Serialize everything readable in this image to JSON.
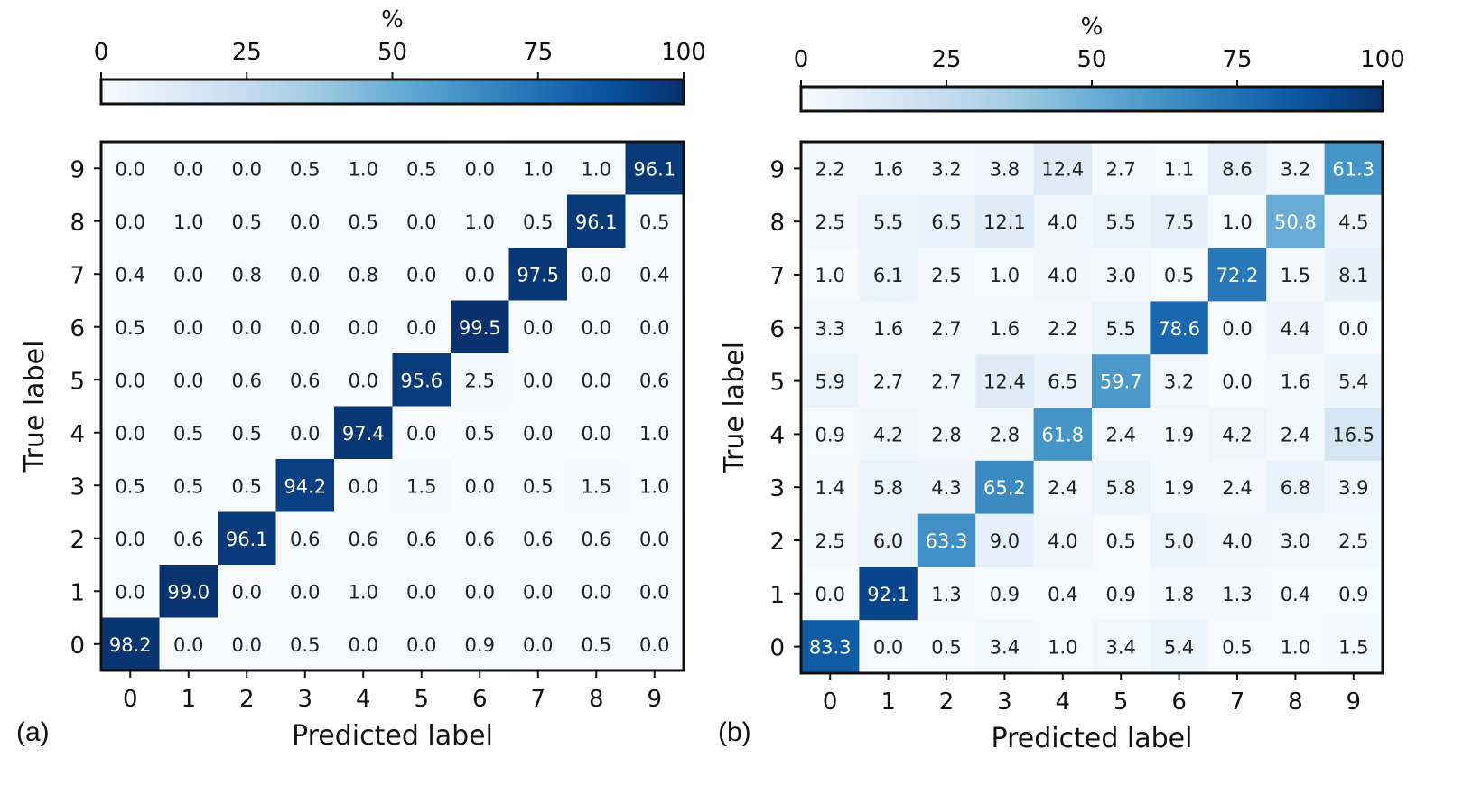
{
  "chart_data": [
    {
      "type": "heatmap",
      "panel_label": "(a)",
      "xlabel": "Predicted label",
      "ylabel": "True label",
      "x_categories": [
        "0",
        "1",
        "2",
        "3",
        "4",
        "5",
        "6",
        "7",
        "8",
        "9"
      ],
      "y_categories": [
        "0",
        "1",
        "2",
        "3",
        "4",
        "5",
        "6",
        "7",
        "8",
        "9"
      ],
      "colorbar": {
        "title": "%",
        "range": [
          0,
          100
        ],
        "ticks": [
          "0",
          "25",
          "50",
          "75",
          "100"
        ],
        "orientation": "horizontal",
        "position": "top"
      },
      "rows_top_to_bottom": [
        "9",
        "8",
        "7",
        "6",
        "5",
        "4",
        "3",
        "2",
        "1",
        "0"
      ],
      "values": [
        [
          "0.0",
          "0.0",
          "0.0",
          "0.5",
          "1.0",
          "0.5",
          "0.0",
          "1.0",
          "1.0",
          "96.1"
        ],
        [
          "0.0",
          "1.0",
          "0.5",
          "0.0",
          "0.5",
          "0.0",
          "1.0",
          "0.5",
          "96.1",
          "0.5"
        ],
        [
          "0.4",
          "0.0",
          "0.8",
          "0.0",
          "0.8",
          "0.0",
          "0.0",
          "97.5",
          "0.0",
          "0.4"
        ],
        [
          "0.5",
          "0.0",
          "0.0",
          "0.0",
          "0.0",
          "0.0",
          "99.5",
          "0.0",
          "0.0",
          "0.0"
        ],
        [
          "0.0",
          "0.0",
          "0.6",
          "0.6",
          "0.0",
          "95.6",
          "2.5",
          "0.0",
          "0.0",
          "0.6"
        ],
        [
          "0.0",
          "0.5",
          "0.5",
          "0.0",
          "97.4",
          "0.0",
          "0.5",
          "0.0",
          "0.0",
          "1.0"
        ],
        [
          "0.5",
          "0.5",
          "0.5",
          "94.2",
          "0.0",
          "1.5",
          "0.0",
          "0.5",
          "1.5",
          "1.0"
        ],
        [
          "0.0",
          "0.6",
          "96.1",
          "0.6",
          "0.6",
          "0.6",
          "0.6",
          "0.6",
          "0.6",
          "0.0"
        ],
        [
          "0.0",
          "99.0",
          "0.0",
          "0.0",
          "1.0",
          "0.0",
          "0.0",
          "0.0",
          "0.0",
          "0.0"
        ],
        [
          "98.2",
          "0.0",
          "0.0",
          "0.5",
          "0.0",
          "0.0",
          "0.9",
          "0.0",
          "0.5",
          "0.0"
        ]
      ]
    },
    {
      "type": "heatmap",
      "panel_label": "(b)",
      "xlabel": "Predicted label",
      "ylabel": "True label",
      "x_categories": [
        "0",
        "1",
        "2",
        "3",
        "4",
        "5",
        "6",
        "7",
        "8",
        "9"
      ],
      "y_categories": [
        "0",
        "1",
        "2",
        "3",
        "4",
        "5",
        "6",
        "7",
        "8",
        "9"
      ],
      "colorbar": {
        "title": "%",
        "range": [
          0,
          100
        ],
        "ticks": [
          "0",
          "25",
          "50",
          "75",
          "100"
        ],
        "orientation": "horizontal",
        "position": "top"
      },
      "rows_top_to_bottom": [
        "9",
        "8",
        "7",
        "6",
        "5",
        "4",
        "3",
        "2",
        "1",
        "0"
      ],
      "values": [
        [
          "2.2",
          "1.6",
          "3.2",
          "3.8",
          "12.4",
          "2.7",
          "1.1",
          "8.6",
          "3.2",
          "61.3"
        ],
        [
          "2.5",
          "5.5",
          "6.5",
          "12.1",
          "4.0",
          "5.5",
          "7.5",
          "1.0",
          "50.8",
          "4.5"
        ],
        [
          "1.0",
          "6.1",
          "2.5",
          "1.0",
          "4.0",
          "3.0",
          "0.5",
          "72.2",
          "1.5",
          "8.1"
        ],
        [
          "3.3",
          "1.6",
          "2.7",
          "1.6",
          "2.2",
          "5.5",
          "78.6",
          "0.0",
          "4.4",
          "0.0"
        ],
        [
          "5.9",
          "2.7",
          "2.7",
          "12.4",
          "6.5",
          "59.7",
          "3.2",
          "0.0",
          "1.6",
          "5.4"
        ],
        [
          "0.9",
          "4.2",
          "2.8",
          "2.8",
          "61.8",
          "2.4",
          "1.9",
          "4.2",
          "2.4",
          "16.5"
        ],
        [
          "1.4",
          "5.8",
          "4.3",
          "65.2",
          "2.4",
          "5.8",
          "1.9",
          "2.4",
          "6.8",
          "3.9"
        ],
        [
          "2.5",
          "6.0",
          "63.3",
          "9.0",
          "4.0",
          "0.5",
          "5.0",
          "4.0",
          "3.0",
          "2.5"
        ],
        [
          "0.0",
          "92.1",
          "1.3",
          "0.9",
          "0.4",
          "0.9",
          "1.8",
          "1.3",
          "0.4",
          "0.9"
        ],
        [
          "83.3",
          "0.0",
          "0.5",
          "3.4",
          "1.0",
          "3.4",
          "5.4",
          "0.5",
          "1.0",
          "1.5"
        ]
      ]
    }
  ]
}
